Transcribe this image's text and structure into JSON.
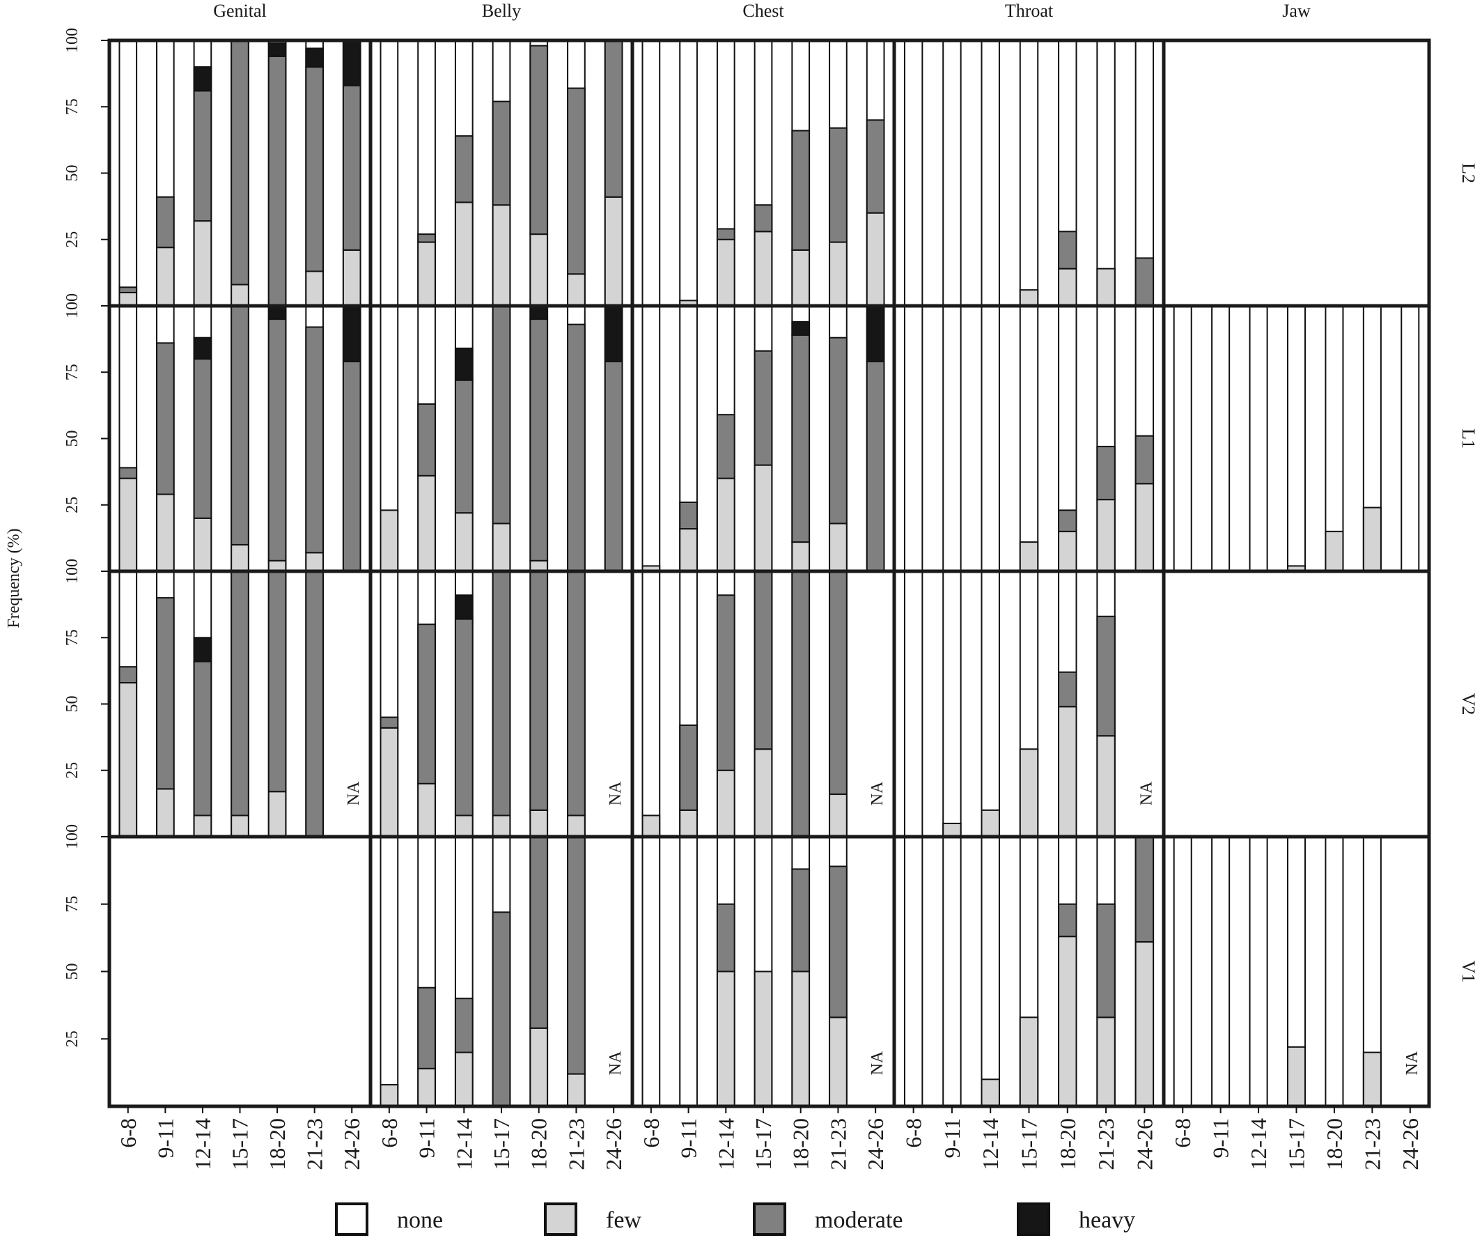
{
  "chart_data": {
    "type": "bar",
    "stacked": true,
    "ylabel": "Frequency (%)",
    "ylim": [
      0,
      100
    ],
    "yticks": [
      "25",
      "50",
      "75",
      "100"
    ],
    "columns": [
      "Genital",
      "Belly",
      "Chest",
      "Throat",
      "Jaw"
    ],
    "rows": [
      "L2",
      "L1",
      "V2",
      "V1"
    ],
    "categories": [
      "6-8",
      "9-11",
      "12-14",
      "15-17",
      "18-20",
      "21-23",
      "24-26"
    ],
    "legend": [
      {
        "key": "none",
        "label": "none",
        "color": "#ffffff"
      },
      {
        "key": "few",
        "label": "few",
        "color": "#d4d4d4"
      },
      {
        "key": "moderate",
        "label": "moderate",
        "color": "#808080"
      },
      {
        "key": "heavy",
        "label": "heavy",
        "color": "#161616"
      }
    ],
    "na_label": "NA",
    "panels": {
      "L2": {
        "Genital": [
          [
            5,
            2,
            0
          ],
          [
            22,
            19,
            0
          ],
          [
            32,
            49,
            9
          ],
          [
            8,
            92,
            0
          ],
          [
            0,
            94,
            5
          ],
          [
            13,
            77,
            7
          ],
          [
            21,
            62,
            17
          ]
        ],
        "Belly": [
          [
            0,
            0,
            0
          ],
          [
            24,
            3,
            0
          ],
          [
            39,
            25,
            0
          ],
          [
            38,
            39,
            0
          ],
          [
            27,
            71,
            0
          ],
          [
            12,
            70,
            0
          ],
          [
            41,
            59,
            0
          ]
        ],
        "Chest": [
          [
            0,
            0,
            0
          ],
          [
            2,
            0,
            0
          ],
          [
            25,
            4,
            0
          ],
          [
            28,
            10,
            0
          ],
          [
            21,
            45,
            0
          ],
          [
            24,
            43,
            0
          ],
          [
            35,
            35,
            0
          ]
        ],
        "Throat": [
          [
            0,
            0,
            0
          ],
          [
            0,
            0,
            0
          ],
          [
            0,
            0,
            0
          ],
          [
            6,
            0,
            0
          ],
          [
            14,
            14,
            0
          ],
          [
            14,
            0,
            0
          ],
          [
            0,
            18,
            0
          ]
        ],
        "Jaw": null
      },
      "L1": {
        "Genital": [
          [
            35,
            4,
            0
          ],
          [
            29,
            57,
            0
          ],
          [
            20,
            60,
            8
          ],
          [
            10,
            90,
            0
          ],
          [
            4,
            91,
            5
          ],
          [
            7,
            85,
            0
          ],
          [
            0,
            79,
            21
          ]
        ],
        "Belly": [
          [
            23,
            0,
            0
          ],
          [
            36,
            27,
            0
          ],
          [
            22,
            50,
            12
          ],
          [
            18,
            82,
            0
          ],
          [
            4,
            91,
            5
          ],
          [
            0,
            93,
            0
          ],
          [
            0,
            79,
            21
          ]
        ],
        "Chest": [
          [
            2,
            0,
            0
          ],
          [
            16,
            10,
            0
          ],
          [
            35,
            24,
            0
          ],
          [
            40,
            43,
            0
          ],
          [
            11,
            78,
            5
          ],
          [
            18,
            70,
            0
          ],
          [
            0,
            79,
            21
          ]
        ],
        "Throat": [
          [
            0,
            0,
            0
          ],
          [
            0,
            0,
            0
          ],
          [
            0,
            0,
            0
          ],
          [
            11,
            0,
            0
          ],
          [
            15,
            8,
            0
          ],
          [
            27,
            20,
            0
          ],
          [
            33,
            18,
            0
          ]
        ],
        "Jaw": [
          [
            0,
            0,
            0
          ],
          [
            0,
            0,
            0
          ],
          [
            0,
            0,
            0
          ],
          [
            2,
            0,
            0
          ],
          [
            15,
            0,
            0
          ],
          [
            24,
            0,
            0
          ],
          [
            0,
            0,
            0
          ]
        ]
      },
      "V2": {
        "Genital": [
          [
            58,
            6,
            0
          ],
          [
            18,
            72,
            0
          ],
          [
            8,
            58,
            9
          ],
          [
            8,
            92,
            0
          ],
          [
            17,
            83,
            0
          ],
          [
            0,
            100,
            0
          ],
          null
        ],
        "Belly": [
          [
            41,
            4,
            0
          ],
          [
            20,
            60,
            0
          ],
          [
            8,
            74,
            9
          ],
          [
            8,
            92,
            0
          ],
          [
            10,
            90,
            0
          ],
          [
            8,
            92,
            0
          ],
          null
        ],
        "Chest": [
          [
            8,
            0,
            0
          ],
          [
            10,
            32,
            0
          ],
          [
            25,
            66,
            0
          ],
          [
            33,
            67,
            0
          ],
          [
            0,
            100,
            0
          ],
          [
            16,
            84,
            0
          ],
          null
        ],
        "Throat": [
          [
            0,
            0,
            0
          ],
          [
            5,
            0,
            0
          ],
          [
            10,
            0,
            0
          ],
          [
            33,
            0,
            0
          ],
          [
            49,
            13,
            0
          ],
          [
            38,
            45,
            0
          ],
          null
        ],
        "Jaw": null
      },
      "V1": {
        "Genital": null,
        "Belly": [
          [
            8,
            0,
            0
          ],
          [
            14,
            30,
            0
          ],
          [
            20,
            20,
            0
          ],
          [
            0,
            72,
            0
          ],
          [
            29,
            71,
            0
          ],
          [
            12,
            88,
            0
          ],
          null
        ],
        "Chest": [
          [
            0,
            0,
            0
          ],
          [
            0,
            0,
            0
          ],
          [
            50,
            25,
            0
          ],
          [
            50,
            0,
            0
          ],
          [
            50,
            38,
            0
          ],
          [
            33,
            56,
            0
          ],
          null
        ],
        "Throat": [
          [
            0,
            0,
            0
          ],
          [
            0,
            0,
            0
          ],
          [
            10,
            0,
            0
          ],
          [
            33,
            0,
            0
          ],
          [
            63,
            12,
            0
          ],
          [
            33,
            42,
            0
          ],
          [
            61,
            39,
            0
          ]
        ],
        "Jaw": [
          [
            0,
            0,
            0
          ],
          [
            0,
            0,
            0
          ],
          [
            0,
            0,
            0
          ],
          [
            22,
            0,
            0
          ],
          [
            0,
            0,
            0
          ],
          [
            20,
            0,
            0
          ],
          null
        ]
      }
    }
  }
}
